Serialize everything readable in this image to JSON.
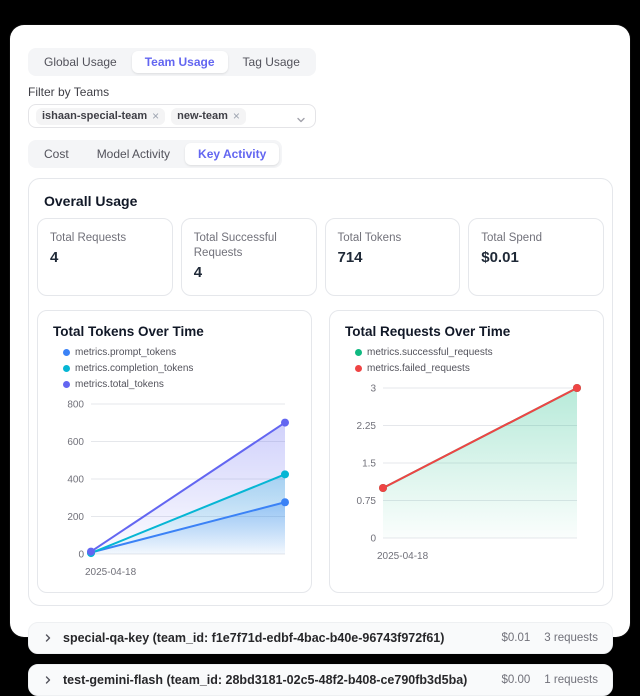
{
  "colors": {
    "accent": "#6366f1",
    "blue": "#3b82f6",
    "cyan": "#06b6d4",
    "indigo": "#6366f1",
    "green": "#10b981",
    "red": "#ef4444",
    "grid": "#e5e7eb",
    "tick_text": "#71717a"
  },
  "tabs_primary": {
    "items": [
      {
        "label": "Global Usage",
        "active": false
      },
      {
        "label": "Team Usage",
        "active": true
      },
      {
        "label": "Tag Usage",
        "active": false
      }
    ]
  },
  "filter": {
    "label": "Filter by Teams",
    "chips": [
      "ishaan-special-team",
      "new-team"
    ]
  },
  "tabs_secondary": {
    "items": [
      {
        "label": "Cost",
        "active": false
      },
      {
        "label": "Model Activity",
        "active": false
      },
      {
        "label": "Key Activity",
        "active": true
      }
    ]
  },
  "overall": {
    "title": "Overall Usage",
    "stats": [
      {
        "label": "Total Requests",
        "value": "4"
      },
      {
        "label": "Total Successful Requests",
        "value": "4"
      },
      {
        "label": "Total Tokens",
        "value": "714"
      },
      {
        "label": "Total Spend",
        "value": "$0.01"
      }
    ]
  },
  "chart_data": [
    {
      "type": "area",
      "title": "Total Tokens Over Time",
      "categories": [
        "2025-04-18",
        ""
      ],
      "series": [
        {
          "name": "metrics.prompt_tokens",
          "color": "#3b82f6",
          "values": [
            8,
            276
          ],
          "area": true
        },
        {
          "name": "metrics.completion_tokens",
          "color": "#06b6d4",
          "values": [
            5,
            425
          ],
          "area": true
        },
        {
          "name": "metrics.total_tokens",
          "color": "#6366f1",
          "values": [
            13,
            701
          ],
          "area": true
        }
      ],
      "yticks": [
        0,
        200,
        400,
        600,
        800
      ],
      "ylim": [
        0,
        800
      ],
      "grid": true,
      "legend_position": "top",
      "legend_layout": "wrap",
      "xlabel": "",
      "ylabel": ""
    },
    {
      "type": "area",
      "title": "Total Requests Over Time",
      "categories": [
        "2025-04-18",
        ""
      ],
      "series": [
        {
          "name": "metrics.successful_requests",
          "color": "#10b981",
          "values": [
            1,
            3
          ],
          "area": true
        },
        {
          "name": "metrics.failed_requests",
          "color": "#ef4444",
          "values": [
            1,
            3
          ],
          "area": false
        }
      ],
      "yticks": [
        0,
        0.75,
        1.5,
        2.25,
        3
      ],
      "ylim": [
        0,
        3
      ],
      "grid": true,
      "legend_position": "top",
      "legend_layout": "stacked",
      "xlabel": "",
      "ylabel": ""
    }
  ],
  "key_rows": [
    {
      "title": "special-qa-key (team_id: f1e7f71d-edbf-4bac-b40e-96743f972f61)",
      "spend": "$0.01",
      "requests": "3 requests"
    },
    {
      "title": "test-gemini-flash (team_id: 28bd3181-02c5-48f2-b408-ce790fb3d5ba)",
      "spend": "$0.00",
      "requests": "1 requests"
    }
  ]
}
